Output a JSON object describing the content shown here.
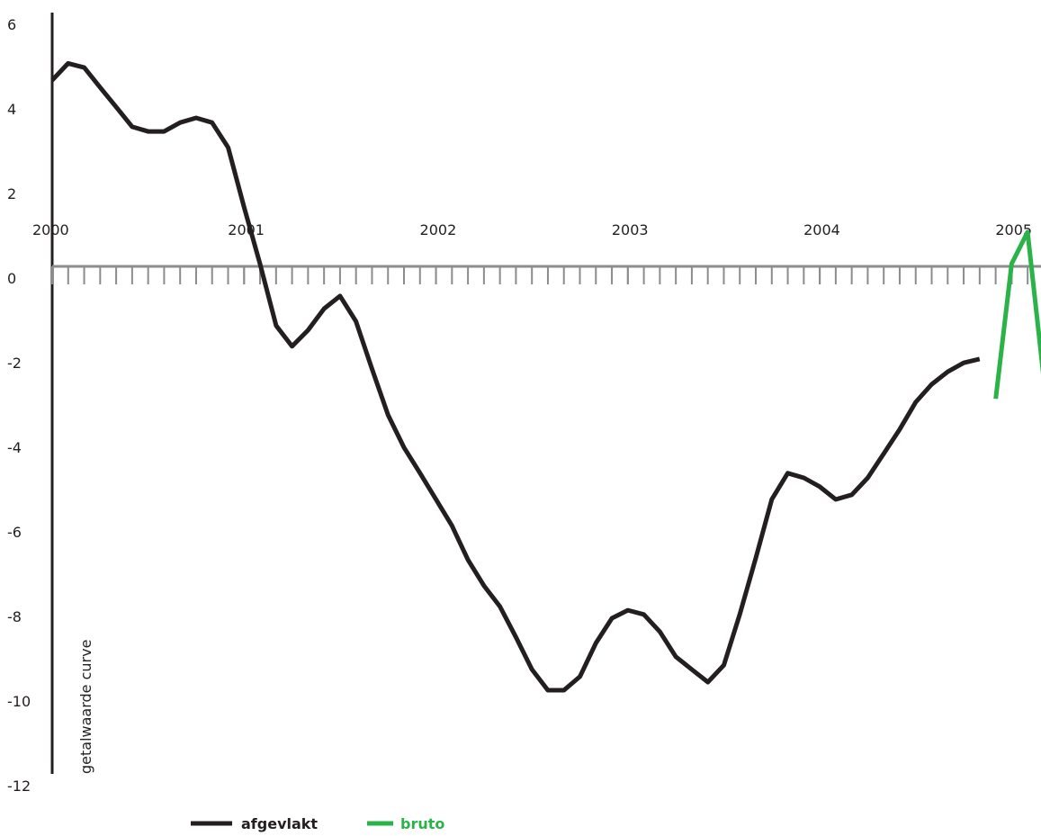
{
  "chart_data": {
    "type": "line",
    "y_label": "getalwaarde curve",
    "x": [
      2000,
      2000.083,
      2000.167,
      2000.25,
      2000.333,
      2000.417,
      2000.5,
      2000.583,
      2000.667,
      2000.75,
      2000.833,
      2000.917,
      2001,
      2001.083,
      2001.167,
      2001.25,
      2001.333,
      2001.417,
      2001.5,
      2001.583,
      2001.667,
      2001.75,
      2001.833,
      2001.917,
      2002,
      2002.083,
      2002.167,
      2002.25,
      2002.333,
      2002.417,
      2002.5,
      2002.583,
      2002.667,
      2002.75,
      2002.833,
      2002.917,
      2003,
      2003.083,
      2003.167,
      2003.25,
      2003.333,
      2003.417,
      2003.5,
      2003.583,
      2003.667,
      2003.75,
      2003.833,
      2003.917,
      2004,
      2004.083,
      2004.167,
      2004.25,
      2004.333,
      2004.417,
      2004.5,
      2004.583,
      2004.667,
      2004.75,
      2004.833,
      2004.917,
      2005,
      2005.083,
      2005.167
    ],
    "series": [
      {
        "name": "afgevlakt",
        "color": "#231f20",
        "values": [
          4.4,
          4.8,
          4.7,
          4.23,
          3.77,
          3.3,
          3.19,
          3.19,
          3.4,
          3.51,
          3.4,
          2.81,
          1.4,
          0.06,
          -1.4,
          -1.89,
          -1.51,
          -1.0,
          -0.7,
          -1.3,
          -2.43,
          -3.51,
          -4.28,
          -4.89,
          -5.51,
          -6.13,
          -6.94,
          -7.55,
          -8.04,
          -8.77,
          -9.53,
          -10.02,
          -10.02,
          -9.7,
          -8.91,
          -8.32,
          -8.13,
          -8.23,
          -8.64,
          -9.23,
          -9.53,
          -9.83,
          -9.43,
          -8.23,
          -6.89,
          -5.51,
          -4.89,
          -5.0,
          -5.21,
          -5.51,
          -5.4,
          -5.0,
          -4.43,
          -3.85,
          -3.21,
          -2.79,
          -2.49,
          -2.28,
          -2.19,
          null,
          null,
          null,
          null
        ]
      },
      {
        "name": "bruto",
        "color": "#2bb34a",
        "values": [
          null,
          null,
          null,
          null,
          null,
          null,
          null,
          null,
          null,
          null,
          null,
          null,
          null,
          null,
          null,
          null,
          null,
          null,
          null,
          null,
          null,
          null,
          null,
          null,
          null,
          null,
          null,
          null,
          null,
          null,
          null,
          null,
          null,
          null,
          null,
          null,
          null,
          null,
          null,
          null,
          null,
          null,
          null,
          null,
          null,
          null,
          null,
          null,
          null,
          null,
          null,
          null,
          null,
          null,
          null,
          null,
          null,
          null,
          null,
          -3.13,
          0.06,
          0.81,
          -2.64
        ]
      }
    ],
    "xlim": [
      2000,
      2005.167
    ],
    "xticks": [
      2000,
      2001,
      2002,
      2003,
      2004,
      2005
    ],
    "ylim": [
      -12,
      6
    ],
    "yticks": [
      -12,
      -10,
      -8,
      -6,
      -4,
      -2,
      0,
      2,
      4,
      6
    ]
  }
}
